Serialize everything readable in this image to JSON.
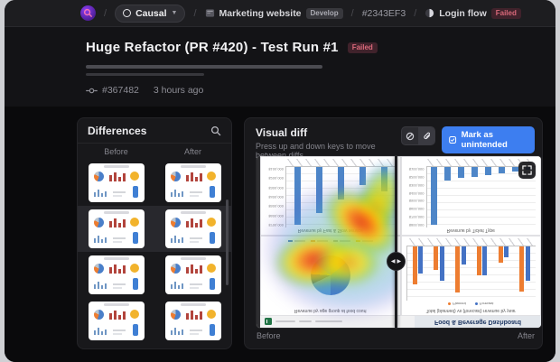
{
  "topbar": {
    "separator": "/",
    "org": {
      "label": "Causal"
    },
    "project": {
      "label": "Marketing website",
      "badge": "Develop"
    },
    "commit": "#2343EF3",
    "flow": {
      "label": "Login flow",
      "badge": "Failed"
    }
  },
  "header": {
    "title": "Huge Refactor (PR #420) - Test Run #1",
    "status_badge": "Failed",
    "run_id": "#367482",
    "time": "3 hours ago"
  },
  "panels": {
    "differences": {
      "title": "Differences",
      "col_before": "Before",
      "col_after": "After",
      "rows": [
        {
          "selected": false
        },
        {
          "selected": true
        },
        {
          "selected": false
        },
        {
          "selected": false
        }
      ]
    },
    "visual": {
      "title": "Visual diff",
      "hint": "Press up and down keys to move between diffs",
      "mark_label": "Mark as unintended",
      "before_label": "Before",
      "after_label": "After"
    }
  },
  "diff_screenshot": {
    "dashboard_title": "Food & Beverage Dashboard",
    "colors": {
      "blue": "#4e86c8",
      "planned": "#ed7d31",
      "forecast": "#4472c4"
    },
    "series": [
      "Planned",
      "Forecast"
    ],
    "charts": [
      {
        "type": "pie",
        "title": "Revenue by age group at food court",
        "slices": [
          {
            "color": "#4472c4",
            "pct": 36
          },
          {
            "color": "#ed7d31",
            "pct": 16
          },
          {
            "color": "#a5a5a5",
            "pct": 12
          },
          {
            "color": "#ffc000",
            "pct": 10
          },
          {
            "color": "#264478",
            "pct": 8
          },
          {
            "color": "#5b9bd5",
            "pct": 18
          }
        ]
      },
      {
        "type": "grouped-bar",
        "title": "Total (planned) vs (forecast) revenue by year",
        "pairs": [
          [
            70,
            50
          ],
          [
            42,
            62
          ],
          [
            84,
            32
          ],
          [
            52,
            52
          ],
          [
            30,
            20
          ],
          [
            82,
            62
          ]
        ]
      },
      {
        "type": "bar",
        "title": "Revenue by Fast & Slow service",
        "values": [
          95,
          76,
          54,
          30,
          40
        ],
        "ticks": [
          "$700,000",
          "$600,000",
          "$500,000",
          "$400,000",
          "$300,000",
          "$200,000",
          "$100,000"
        ]
      },
      {
        "type": "bar",
        "title": "Revenue by Ticket Type",
        "values": [
          95,
          22,
          18,
          16,
          14,
          11,
          8,
          5
        ],
        "ticks": [
          "$800,000",
          "$700,000",
          "$600,000",
          "$500,000",
          "$400,000",
          "$300,000",
          "$200,000",
          "$100,000"
        ]
      }
    ]
  },
  "colors": {
    "accent_blue": "#3d7ef0",
    "failed_badge_bg": "#40222b",
    "failed_badge_text": "#d9697a",
    "panel_bg": "#18181b"
  }
}
